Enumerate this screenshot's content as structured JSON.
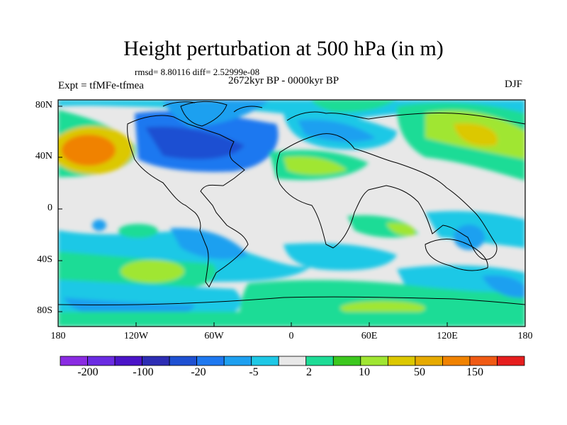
{
  "title": "Height perturbation at 500 hPa (in m)",
  "stats_text": "rmsd= 8.80116 diff= 2.52999e-08",
  "period_text": "2672kyr BP - 0000kyr BP",
  "expt_text": "Expt = tfMFe-tfmea",
  "season": "DJF",
  "lat_labels": [
    "80N",
    "40N",
    "0",
    "40S",
    "80S"
  ],
  "lon_labels": [
    "180",
    "120W",
    "60W",
    "0",
    "60E",
    "120E",
    "180"
  ],
  "colorbar": {
    "colors": [
      "#8a2be2",
      "#6a2be2",
      "#4b14c8",
      "#2d2db4",
      "#1e50d2",
      "#1e78f0",
      "#1ea0f0",
      "#1ec8e6",
      "#e8e8e8",
      "#1edc96",
      "#3cc81e",
      "#a0e632",
      "#dcc800",
      "#e6aa00",
      "#f08200",
      "#f05a14",
      "#e61e1e"
    ],
    "labels": [
      "-200",
      "-100",
      "-20",
      "-5",
      "2",
      "10",
      "50",
      "150"
    ]
  }
}
